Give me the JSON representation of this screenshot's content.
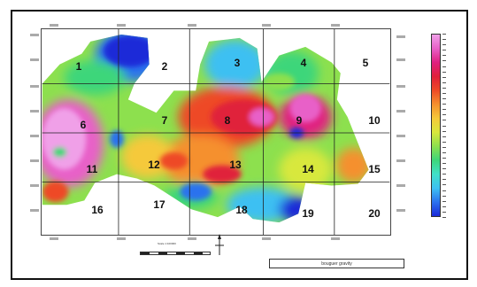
{
  "grid_labels": [
    "1",
    "2",
    "3",
    "4",
    "5",
    "6",
    "7",
    "8",
    "9",
    "10",
    "11",
    "12",
    "13",
    "14",
    "15",
    "16",
    "17",
    "18",
    "19",
    "20"
  ],
  "legend": {
    "caption": "bouguer gravity"
  },
  "scale": {
    "text": "Scale 1:100000"
  },
  "colors": {
    "colormap": [
      "#1a2ad8",
      "#2b72ee",
      "#3ec0f2",
      "#40e0c8",
      "#3ed67a",
      "#8de04e",
      "#d8e83c",
      "#f5c93a",
      "#f5902e",
      "#ee4a26",
      "#e0203a",
      "#e02080",
      "#e860c8",
      "#f0a0e8"
    ]
  },
  "north_arrow": "north-arrow-icon"
}
